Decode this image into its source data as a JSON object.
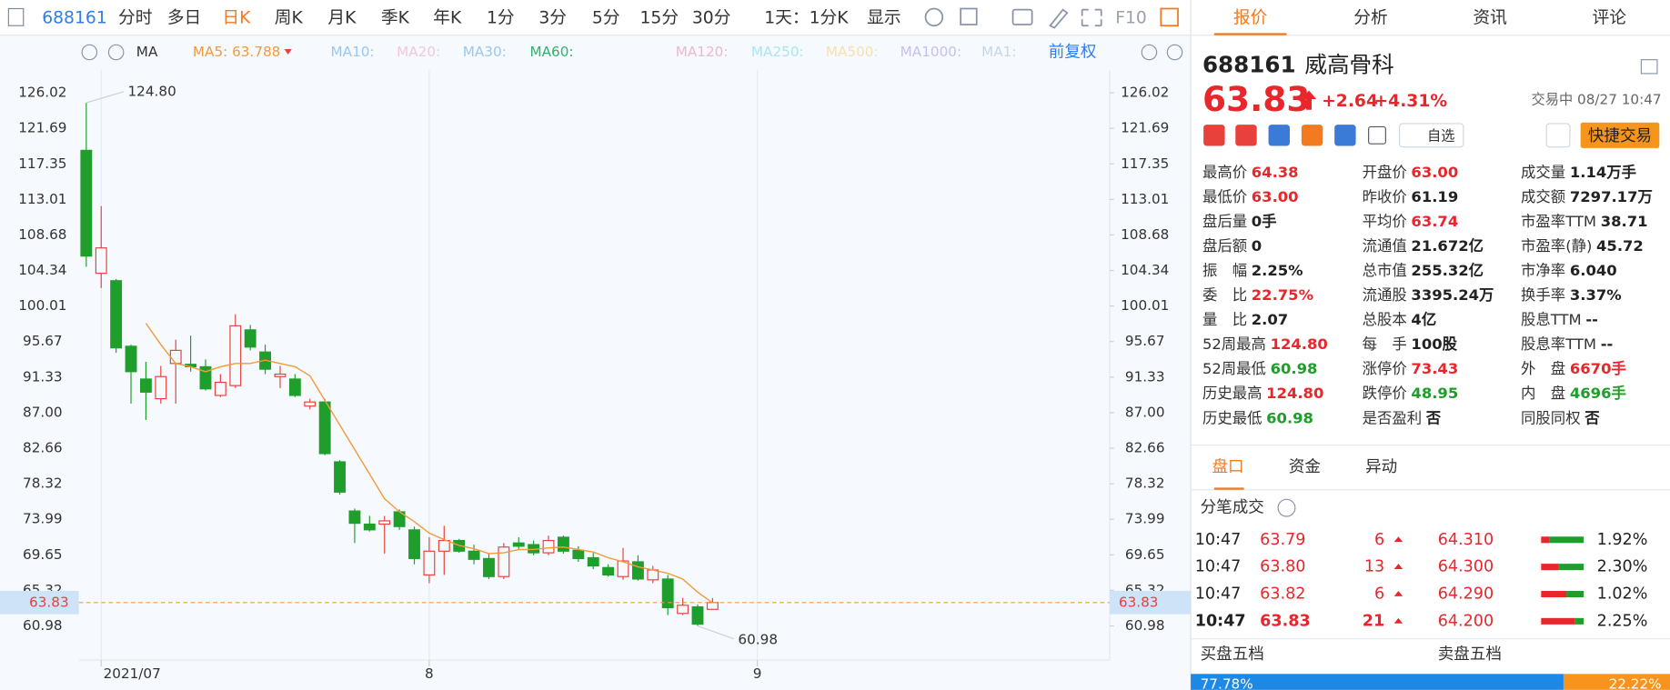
{
  "toolbar": {
    "tabs": [
      "688161",
      "分时",
      "多日",
      "日K",
      "周K",
      "月K",
      "季K",
      "年K",
      "1分",
      "3分",
      "5分",
      "15分",
      "30分",
      "1天：1分K",
      "显示",
      "F10"
    ],
    "active": 3
  },
  "ma_bar": {
    "labels": [
      "MA",
      "MA10:",
      "MA20:",
      "MA30:",
      "MA60:",
      "MA120:",
      "MA250:",
      "MA500:",
      "MA1000:",
      "MA1:"
    ],
    "adjust": "前复权"
  },
  "chart_data": {
    "type": "candlestick",
    "open": [
      119.0,
      104.0,
      103.1,
      95.1,
      91.1,
      88.7,
      93.0,
      92.9,
      92.6,
      89.1,
      90.3,
      97.1,
      94.4,
      91.4,
      91.1,
      87.8,
      88.3,
      81.0,
      75.0,
      73.4,
      73.4,
      74.9,
      72.7,
      67.2,
      70.1,
      71.4,
      70.1,
      69.2,
      67.0,
      71.1,
      70.9,
      69.9,
      71.8,
      70.2,
      69.3,
      68.1,
      67.0,
      68.8,
      66.6,
      66.7,
      62.5,
      63.3,
      63.0
    ],
    "high": [
      124.8,
      112.2,
      103.3,
      95.3,
      93.2,
      92.7,
      95.9,
      96.4,
      93.5,
      91.7,
      99.0,
      97.7,
      95.3,
      92.7,
      91.7,
      88.7,
      88.7,
      81.2,
      75.3,
      74.4,
      74.4,
      75.2,
      73.1,
      71.8,
      73.2,
      71.6,
      70.9,
      69.8,
      71.1,
      71.8,
      71.4,
      72.0,
      72.0,
      70.7,
      69.9,
      68.5,
      70.5,
      69.6,
      68.3,
      67.2,
      64.4,
      63.6,
      64.38
    ],
    "low": [
      104.8,
      102.2,
      94.3,
      88.1,
      86.1,
      88.1,
      88.1,
      92.0,
      89.7,
      88.9,
      90.0,
      94.6,
      91.7,
      90.0,
      88.9,
      87.4,
      81.8,
      77.0,
      71.1,
      72.5,
      69.8,
      72.7,
      68.5,
      66.2,
      67.2,
      69.9,
      68.5,
      66.7,
      66.7,
      70.3,
      69.6,
      69.6,
      69.8,
      68.8,
      67.9,
      67.0,
      66.6,
      66.5,
      66.2,
      62.3,
      62.3,
      60.98,
      63.0
    ],
    "close": [
      106.1,
      107.1,
      94.9,
      92.0,
      89.5,
      91.4,
      94.6,
      92.6,
      89.9,
      90.7,
      97.6,
      95.0,
      92.3,
      91.7,
      89.1,
      88.3,
      82.0,
      77.3,
      73.5,
      72.7,
      73.8,
      73.1,
      69.2,
      70.1,
      71.4,
      70.1,
      69.1,
      67.0,
      70.6,
      70.7,
      69.9,
      71.4,
      70.1,
      69.2,
      68.3,
      67.2,
      68.9,
      66.7,
      67.8,
      63.2,
      63.5,
      61.19,
      63.83
    ],
    "up_color": "#e8413c",
    "down_color": "#1f9e2c",
    "ma5": {
      "name": "MA5: 63.788",
      "color": "#f39a3a",
      "values": [
        null,
        null,
        null,
        null,
        97.9,
        95.3,
        93.0,
        92.6,
        92.0,
        92.6,
        93.0,
        93.0,
        93.4,
        93.0,
        92.6,
        91.5,
        88.5,
        85.5,
        82.5,
        79.5,
        76.5,
        74.9,
        73.7,
        72.3,
        71.5,
        70.8,
        70.4,
        69.8,
        69.9,
        70.3,
        70.3,
        70.5,
        70.6,
        70.3,
        70.0,
        69.3,
        68.8,
        68.2,
        67.8,
        67.4,
        66.7,
        65.1,
        63.788
      ]
    },
    "ylim": [
      56.81,
      128.76
    ],
    "yticks": [
      126.02,
      121.69,
      117.35,
      113.01,
      108.68,
      104.34,
      100.01,
      95.67,
      91.33,
      {
        "value": 87,
        "label": "87.00"
      },
      82.66,
      78.32,
      73.99,
      69.65,
      65.32,
      60.98
    ],
    "xlim": [
      -0.5,
      68.64
    ],
    "xticks": [
      {
        "value": 1,
        "label": "2021/07"
      },
      {
        "value": 23,
        "label": "8"
      },
      {
        "value": 45,
        "label": "9"
      }
    ],
    "grid": true,
    "last_price": 63.83,
    "max_annotation": {
      "value": 124.8,
      "label": "124.80"
    },
    "min_annotation": {
      "value": 60.98,
      "label": "60.98"
    }
  },
  "quote_panel": {
    "tabs": [
      "报价",
      "分析",
      "资讯",
      "评论"
    ],
    "code": "688161",
    "name": "威高骨科",
    "price": "63.83",
    "change": "+2.64",
    "change_pct": "+4.31%",
    "status": "交易中 08/27 10:47",
    "watch": "自选",
    "quick_trade": "快捷交易",
    "stats": [
      [
        {
          "label": "最高价",
          "value": "64.38",
          "color": "up"
        },
        {
          "label": "最低价",
          "value": "63.00",
          "color": "up"
        },
        {
          "label": "盘后量",
          "value": "0手"
        },
        {
          "label": "盘后额",
          "value": "0"
        },
        {
          "label": "振　幅",
          "value": "2.25%"
        },
        {
          "label": "委　比",
          "value": "22.75%",
          "color": "up"
        },
        {
          "label": "量　比",
          "value": "2.07"
        },
        {
          "label": "52周最高",
          "value": "124.80",
          "color": "up"
        },
        {
          "label": "52周最低",
          "value": "60.98",
          "color": "down"
        },
        {
          "label": "历史最高",
          "value": "124.80",
          "color": "up"
        },
        {
          "label": "历史最低",
          "value": "60.98",
          "color": "down"
        }
      ],
      [
        {
          "label": "开盘价",
          "value": "63.00",
          "color": "up"
        },
        {
          "label": "昨收价",
          "value": "61.19"
        },
        {
          "label": "平均价",
          "value": "63.74",
          "color": "up"
        },
        {
          "label": "流通值",
          "value": "21.672亿"
        },
        {
          "label": "总市值",
          "value": "255.32亿"
        },
        {
          "label": "流通股",
          "value": "3395.24万"
        },
        {
          "label": "总股本",
          "value": "4亿"
        },
        {
          "label": "每　手",
          "value": "100股"
        },
        {
          "label": "涨停价",
          "value": "73.43",
          "color": "up"
        },
        {
          "label": "跌停价",
          "value": "48.95",
          "color": "down"
        },
        {
          "label": "是否盈利",
          "value": "否"
        }
      ],
      [
        {
          "label": "成交量",
          "value": "1.14万手"
        },
        {
          "label": "成交额",
          "value": "7297.17万"
        },
        {
          "label": "市盈率TTM",
          "value": "38.71"
        },
        {
          "label": "市盈率(静)",
          "value": "45.72"
        },
        {
          "label": "市净率",
          "value": "6.040"
        },
        {
          "label": "换手率",
          "value": "3.37%"
        },
        {
          "label": "股息TTM",
          "value": "--"
        },
        {
          "label": "股息率TTM",
          "value": "--"
        },
        {
          "label": "外　盘",
          "value": "6670手",
          "color": "up"
        },
        {
          "label": "内　盘",
          "value": "4696手",
          "color": "down"
        },
        {
          "label": "同股同权",
          "value": "否"
        }
      ]
    ],
    "subtabs": [
      "盘口",
      "资金",
      "异动"
    ],
    "trades_title": "分笔成交",
    "trades": [
      [
        "10:47",
        "63.79",
        "6",
        "64.310",
        "1.92%"
      ],
      [
        "10:47",
        "63.80",
        "13",
        "64.300",
        "2.30%"
      ],
      [
        "10:47",
        "63.82",
        "6",
        "64.290",
        "1.02%"
      ],
      [
        "10:47",
        "63.83",
        "21",
        "64.200",
        "2.25%"
      ]
    ],
    "order_book": {
      "buy_label": "买盘五档",
      "sell_label": "卖盘五档",
      "values": [
        77.78,
        22.22
      ],
      "value_labels": [
        "77.78%",
        "22.22%"
      ]
    }
  }
}
